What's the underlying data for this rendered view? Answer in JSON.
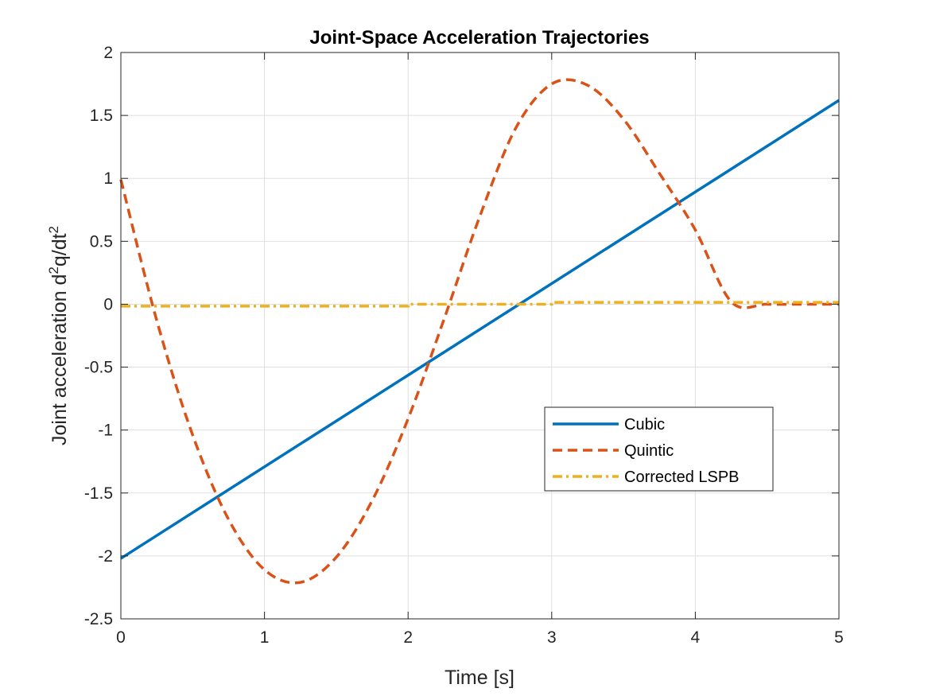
{
  "chart_data": {
    "type": "line",
    "title": "Joint-Space Acceleration Trajectories",
    "xlabel": "Time [s]",
    "ylabel_main": "Joint acceleration d",
    "ylabel_sup1": "2",
    "ylabel_mid": "q/dt",
    "ylabel_sup2": "2",
    "xlim": [
      0,
      5
    ],
    "ylim": [
      -2.5,
      2
    ],
    "xticks": [
      0,
      1,
      2,
      3,
      4,
      5
    ],
    "xtick_labels": [
      "0",
      "1",
      "2",
      "3",
      "4",
      "5"
    ],
    "yticks": [
      -2.5,
      -2,
      -1.5,
      -1,
      -0.5,
      0,
      0.5,
      1,
      1.5,
      2
    ],
    "ytick_labels": [
      "-2.5",
      "-2",
      "-1.5",
      "-1",
      "-0.5",
      "0",
      "0.5",
      "1",
      "1.5",
      "2"
    ],
    "grid": true,
    "legend_position": "lower-right-center",
    "series": [
      {
        "name": "Cubic",
        "color": "#0072BD",
        "style": "solid",
        "x": [
          0,
          5
        ],
        "y": [
          -2.02,
          1.62
        ]
      },
      {
        "name": "Quintic",
        "color": "#D95319",
        "style": "dashed",
        "x": [
          0,
          0.25,
          0.5,
          0.75,
          1.0,
          1.25,
          1.5,
          1.75,
          2.0,
          2.25,
          2.5,
          2.75,
          3.0,
          3.25,
          3.5,
          3.75,
          4.0,
          4.25,
          4.5,
          4.75,
          5.0
        ],
        "y": [
          0.99,
          -0.13,
          -1.04,
          -1.71,
          -2.11,
          -2.21,
          -2.01,
          -1.56,
          -0.91,
          -0.12,
          0.7,
          1.4,
          1.75,
          1.74,
          1.47,
          1.04,
          0.59,
          0.02,
          0.0,
          0.0,
          0.0
        ]
      },
      {
        "name": "Corrected LSPB",
        "color": "#EDB120",
        "style": "dashdot",
        "x": [
          0,
          2,
          2,
          3,
          3,
          5
        ],
        "y": [
          -0.015,
          -0.015,
          0.0,
          0.0,
          0.015,
          0.015
        ]
      }
    ]
  }
}
